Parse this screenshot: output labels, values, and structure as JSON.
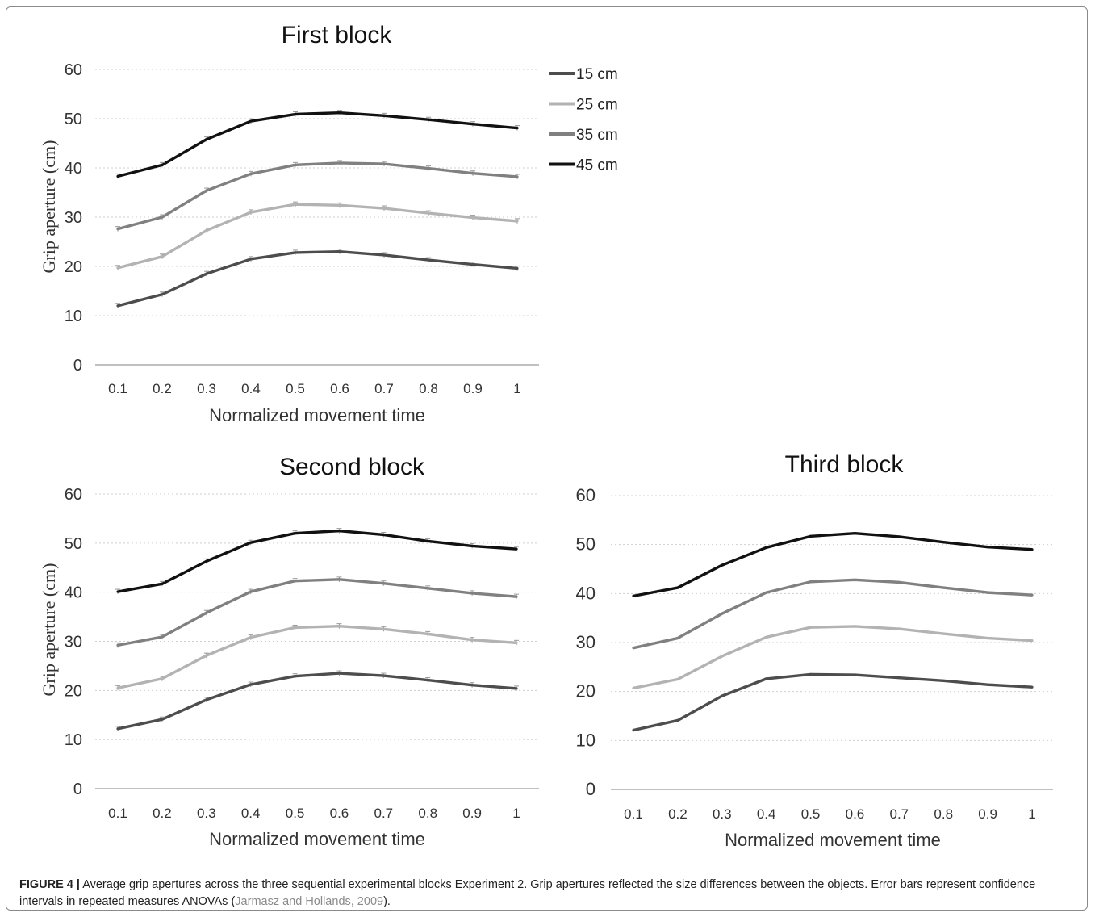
{
  "caption": {
    "label": "FIGURE 4 |",
    "text_before": "Average grip apertures across the three sequential experimental blocks Experiment 2. Grip apertures reflected the size differences between the objects. Error bars represent confidence intervals in repeated measures ANOVAs (",
    "citation": "Jarmasz and Hollands, 2009",
    "text_after": ")."
  },
  "colors": {
    "15 cm": "#4d4d4d",
    "25 cm": "#b3b3b3",
    "35 cm": "#808080",
    "45 cm": "#111111"
  },
  "chart_data": [
    {
      "type": "line",
      "title": "First block",
      "xlabel": "Normalized movement  time",
      "ylabel": "Grip aperture (cm)",
      "x": [
        "0.1",
        "0.2",
        "0.3",
        "0.4",
        "0.5",
        "0.6",
        "0.7",
        "0.8",
        "0.9",
        "1"
      ],
      "ylim": [
        0,
        60
      ],
      "yticks": [
        "0",
        "10",
        "20",
        "30",
        "40",
        "50",
        "60"
      ],
      "grid": true,
      "error_bars": true,
      "legend": "right",
      "series": [
        {
          "name": "15 cm",
          "values": [
            12.0,
            14.3,
            18.5,
            21.5,
            22.8,
            23.0,
            22.3,
            21.3,
            20.4,
            19.6
          ]
        },
        {
          "name": "25 cm",
          "values": [
            19.7,
            22.0,
            27.3,
            31.0,
            32.6,
            32.4,
            31.8,
            30.8,
            29.9,
            29.2
          ]
        },
        {
          "name": "35 cm",
          "values": [
            27.6,
            30.0,
            35.4,
            38.8,
            40.6,
            41.0,
            40.8,
            39.9,
            38.9,
            38.2
          ]
        },
        {
          "name": "45 cm",
          "values": [
            38.3,
            40.6,
            45.8,
            49.5,
            50.9,
            51.2,
            50.6,
            49.8,
            48.9,
            48.1
          ]
        }
      ]
    },
    {
      "type": "line",
      "title": "Second block",
      "xlabel": "Normalized movement  time",
      "ylabel": "Grip aperture (cm)",
      "x": [
        "0.1",
        "0.2",
        "0.3",
        "0.4",
        "0.5",
        "0.6",
        "0.7",
        "0.8",
        "0.9",
        "1"
      ],
      "ylim": [
        0,
        60
      ],
      "yticks": [
        "0",
        "10",
        "20",
        "30",
        "40",
        "50",
        "60"
      ],
      "grid": true,
      "error_bars": true,
      "series": [
        {
          "name": "15 cm",
          "values": [
            12.2,
            14.1,
            18.1,
            21.2,
            22.9,
            23.5,
            23.0,
            22.1,
            21.1,
            20.4
          ]
        },
        {
          "name": "25 cm",
          "values": [
            20.5,
            22.4,
            27.1,
            30.8,
            32.8,
            33.1,
            32.5,
            31.5,
            30.3,
            29.7
          ]
        },
        {
          "name": "35 cm",
          "values": [
            29.2,
            30.9,
            35.8,
            40.1,
            42.3,
            42.6,
            41.8,
            40.8,
            39.8,
            39.1
          ]
        },
        {
          "name": "45 cm",
          "values": [
            40.1,
            41.7,
            46.3,
            50.1,
            52.0,
            52.5,
            51.7,
            50.4,
            49.4,
            48.8
          ]
        }
      ]
    },
    {
      "type": "line",
      "title": "Third block",
      "xlabel": "Normalized movement  time",
      "ylabel": "",
      "x": [
        "0.1",
        "0.2",
        "0.3",
        "0.4",
        "0.5",
        "0.6",
        "0.7",
        "0.8",
        "0.9",
        "1"
      ],
      "ylim": [
        0,
        60
      ],
      "yticks": [
        "0",
        "10",
        "20",
        "30",
        "40",
        "50",
        "60"
      ],
      "grid": true,
      "error_bars": false,
      "series": [
        {
          "name": "15 cm",
          "values": [
            12.1,
            14.1,
            19.1,
            22.6,
            23.5,
            23.4,
            22.8,
            22.2,
            21.4,
            20.9
          ]
        },
        {
          "name": "25 cm",
          "values": [
            20.7,
            22.5,
            27.2,
            31.1,
            33.1,
            33.3,
            32.8,
            31.8,
            30.9,
            30.4
          ]
        },
        {
          "name": "35 cm",
          "values": [
            28.9,
            30.9,
            35.9,
            40.2,
            42.4,
            42.8,
            42.3,
            41.2,
            40.2,
            39.7
          ]
        },
        {
          "name": "45 cm",
          "values": [
            39.5,
            41.2,
            45.8,
            49.4,
            51.7,
            52.3,
            51.6,
            50.5,
            49.5,
            49.0
          ]
        }
      ]
    }
  ]
}
